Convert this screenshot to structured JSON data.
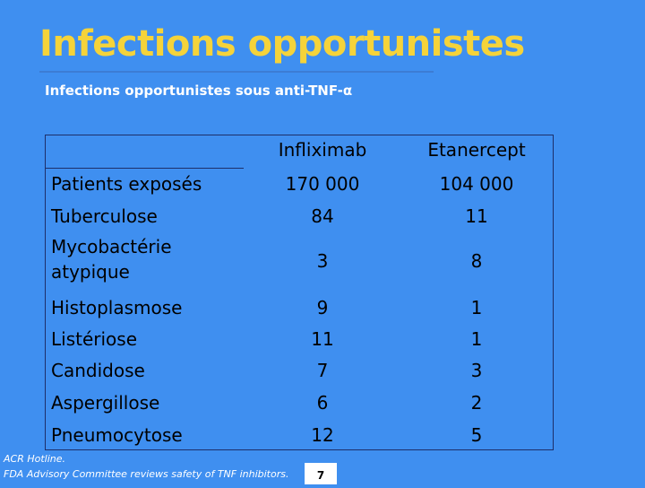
{
  "slide": {
    "title": "Infections opportunistes",
    "subtitle": "Infections opportunistes sous anti-TNF-α",
    "page_number": "7"
  },
  "table": {
    "columns": [
      "",
      "Infliximab",
      "Etanercept"
    ],
    "rows": [
      {
        "label": "Patients exposés",
        "infliximab": "170 000",
        "etanercept": "104 000"
      },
      {
        "label": "Tuberculose",
        "infliximab": "84",
        "etanercept": "11"
      },
      {
        "label": "Mycobactérie atypique",
        "label_line1": "Mycobactérie",
        "label_line2": "atypique",
        "infliximab": "3",
        "etanercept": "8"
      },
      {
        "label": "Histoplasmose",
        "infliximab": "9",
        "etanercept": "1"
      },
      {
        "label": "Listériose",
        "infliximab": "11",
        "etanercept": "1"
      },
      {
        "label": "Candidose",
        "infliximab": "7",
        "etanercept": "3"
      },
      {
        "label": "Aspergillose",
        "infliximab": "6",
        "etanercept": "2"
      },
      {
        "label": "Pneumocytose",
        "infliximab": "12",
        "etanercept": "5"
      }
    ]
  },
  "footnotes": {
    "line1": "ACR Hotline.",
    "line2": "FDA Advisory Committee reviews safety of TNF inhibitors."
  },
  "colors": {
    "background": "#3f8ff0",
    "title": "#f5d33a",
    "text": "#000000"
  }
}
